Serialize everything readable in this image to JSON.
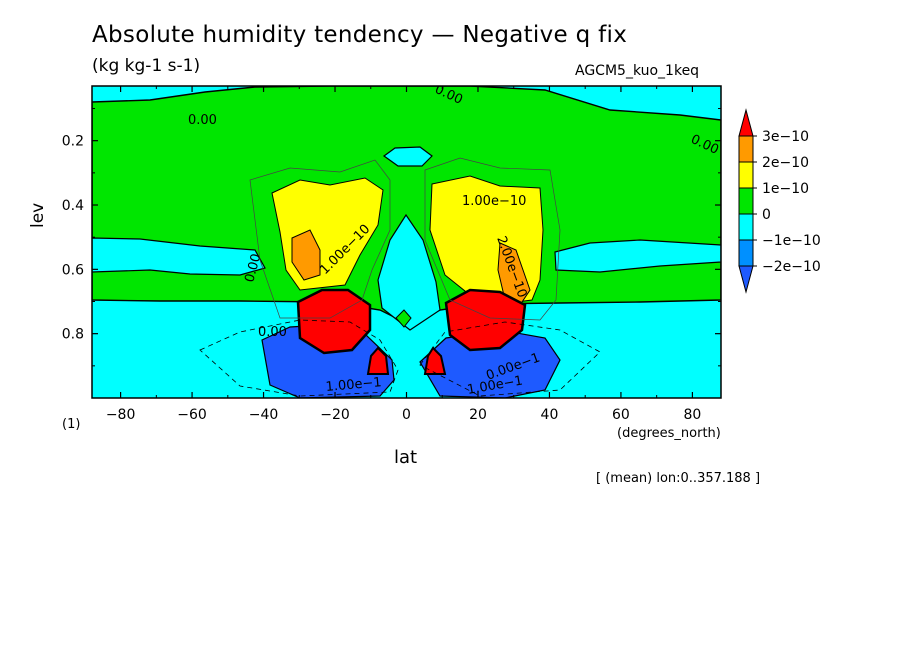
{
  "chart_data": {
    "type": "heatmap",
    "title": "Absolute humidity tendency — Negative q fix",
    "units": "(kg kg-1 s-1)",
    "run_label": "AGCM5_kuo_1keq",
    "xlabel": "lat",
    "xunit": "(degrees_north)",
    "ylabel": "lev",
    "panel_tag": "(1)",
    "footnote": "[ (mean) lon:0..357.188 ]",
    "xlim": [
      -88,
      88
    ],
    "ylim": [
      0.03,
      1.0
    ],
    "y_inverted": true,
    "x_ticks": [
      -80,
      -60,
      -40,
      -20,
      0,
      20,
      40,
      60,
      80
    ],
    "x_tick_labels": [
      "−80",
      "−60",
      "−40",
      "−20",
      "0",
      "20",
      "40",
      "60",
      "80"
    ],
    "y_ticks": [
      0.2,
      0.4,
      0.6,
      0.8
    ],
    "y_tick_labels": [
      "0.2",
      "0.4",
      "0.6",
      "0.8"
    ],
    "levels": [
      -2e-10,
      -1e-10,
      0,
      1e-10,
      2e-10,
      3e-10
    ],
    "colorbar": {
      "labels": [
        "3e−10",
        "2e−10",
        "1e−10",
        "0",
        "−1e−10",
        "−2e−10"
      ],
      "colors": [
        "#ff0000",
        "#ff9a00",
        "#ffff00",
        "#00e600",
        "#00ffff",
        "#0090ff",
        "#1e5aff"
      ]
    },
    "contour_labels": [
      "0.00",
      "0.00",
      "0.00",
      "0.00",
      "1.00e−10",
      "1.00e−10",
      "2.00e−10",
      "0.00",
      "1.00e−1",
      "1.00e−1",
      "0.00e−1"
    ],
    "regions": [
      {
        "sign": "positive",
        "level": "0 to 1e-10",
        "lat": [
          -88,
          88
        ],
        "lev": [
          0.05,
          0.69
        ]
      },
      {
        "sign": "positive",
        "level": "1e-10 to 2e-10",
        "lat": [
          -36,
          -14
        ],
        "lev": [
          0.36,
          0.66
        ]
      },
      {
        "sign": "positive",
        "level": "1e-10 to 2e-10",
        "lat": [
          8,
          40
        ],
        "lev": [
          0.34,
          0.72
        ]
      },
      {
        "sign": "positive",
        "level": "2e-10 to 3e-10",
        "lat": [
          -34,
          -26
        ],
        "lev": [
          0.5,
          0.64
        ]
      },
      {
        "sign": "positive",
        "level": "2e-10 to 3e-10",
        "lat": [
          27,
          35
        ],
        "lev": [
          0.54,
          0.69
        ]
      },
      {
        "sign": "positive",
        "level": ">3e-10",
        "lat": [
          -31,
          -14
        ],
        "lev": [
          0.7,
          0.86
        ]
      },
      {
        "sign": "positive",
        "level": ">3e-10",
        "lat": [
          12,
          33
        ],
        "lev": [
          0.7,
          0.85
        ]
      },
      {
        "sign": "positive",
        "level": ">3e-10",
        "lat": [
          -10,
          -4
        ],
        "lev": [
          0.86,
          0.93
        ]
      },
      {
        "sign": "positive",
        "level": ">3e-10",
        "lat": [
          6,
          12
        ],
        "lev": [
          0.86,
          0.93
        ]
      },
      {
        "sign": "negative",
        "level": "-1e-10 to 0",
        "lat": [
          -88,
          88
        ],
        "lev": [
          0.69,
          1.0
        ]
      },
      {
        "sign": "negative",
        "level": "<-2e-10",
        "lat": [
          -40,
          -5
        ],
        "lev": [
          0.8,
          1.0
        ]
      },
      {
        "sign": "negative",
        "level": "<-2e-10",
        "lat": [
          5,
          40
        ],
        "lev": [
          0.8,
          1.0
        ]
      }
    ]
  }
}
